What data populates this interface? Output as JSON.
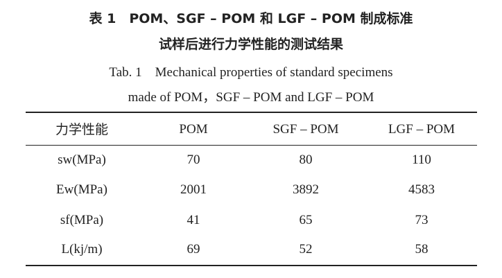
{
  "caption": {
    "zh_line1": "表 1　POM、SGF – POM 和 LGF – POM 制成标准",
    "zh_line2": "试样后进行力学性能的测试结果",
    "en_line1": "Tab. 1　Mechanical properties of standard specimens",
    "en_line2": "made of POM，SGF – POM and LGF – POM"
  },
  "table": {
    "header": [
      "力学性能",
      "POM",
      "SGF – POM",
      "LGF – POM"
    ],
    "rows": [
      [
        "sw(MPa)",
        "70",
        "80",
        "110"
      ],
      [
        "Ew(MPa)",
        "2001",
        "3892",
        "4583"
      ],
      [
        "sf(MPa)",
        "41",
        "65",
        "73"
      ],
      [
        "L(kj/m)",
        "69",
        "52",
        "58"
      ]
    ]
  }
}
